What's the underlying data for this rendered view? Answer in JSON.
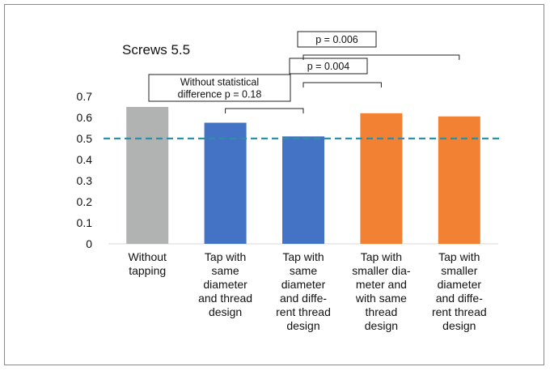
{
  "chart_data": {
    "type": "bar",
    "title": "Screws 5.5",
    "categories": [
      [
        "Without",
        "tapping"
      ],
      [
        "Tap with",
        "same",
        "diameter",
        "and thread",
        "design"
      ],
      [
        "Tap with",
        "same",
        "diameter",
        "and diffe-",
        "rent thread",
        "design"
      ],
      [
        "Tap with",
        "smaller dia-",
        "meter and",
        "with same",
        "thread",
        "design"
      ],
      [
        "Tap with",
        "smaller",
        "diameter",
        "and diffe-",
        "rent thread",
        "design"
      ]
    ],
    "values": [
      0.65,
      0.575,
      0.51,
      0.62,
      0.605
    ],
    "bar_colors": [
      "#b1b3b3",
      "#4472c4",
      "#4472c4",
      "#f28134",
      "#f28134"
    ],
    "ylim": [
      0,
      0.7
    ],
    "yticks": [
      "0",
      "0.1",
      "0.2",
      "0.3",
      "0.4",
      "0.5",
      "0.6",
      "0.7"
    ],
    "reference_line": {
      "y": 0.5,
      "color": "#2e8fa6",
      "style": "dashed"
    },
    "grid": false,
    "legend": "none",
    "annotations": [
      {
        "from": 1,
        "to": 2,
        "lines": [
          "Without statistical",
          "difference p = 0.18"
        ]
      },
      {
        "from": 2,
        "to": 3,
        "lines": [
          "p = 0.004"
        ]
      },
      {
        "from": 2,
        "to": 4,
        "lines": [
          "p = 0.006"
        ]
      }
    ]
  }
}
